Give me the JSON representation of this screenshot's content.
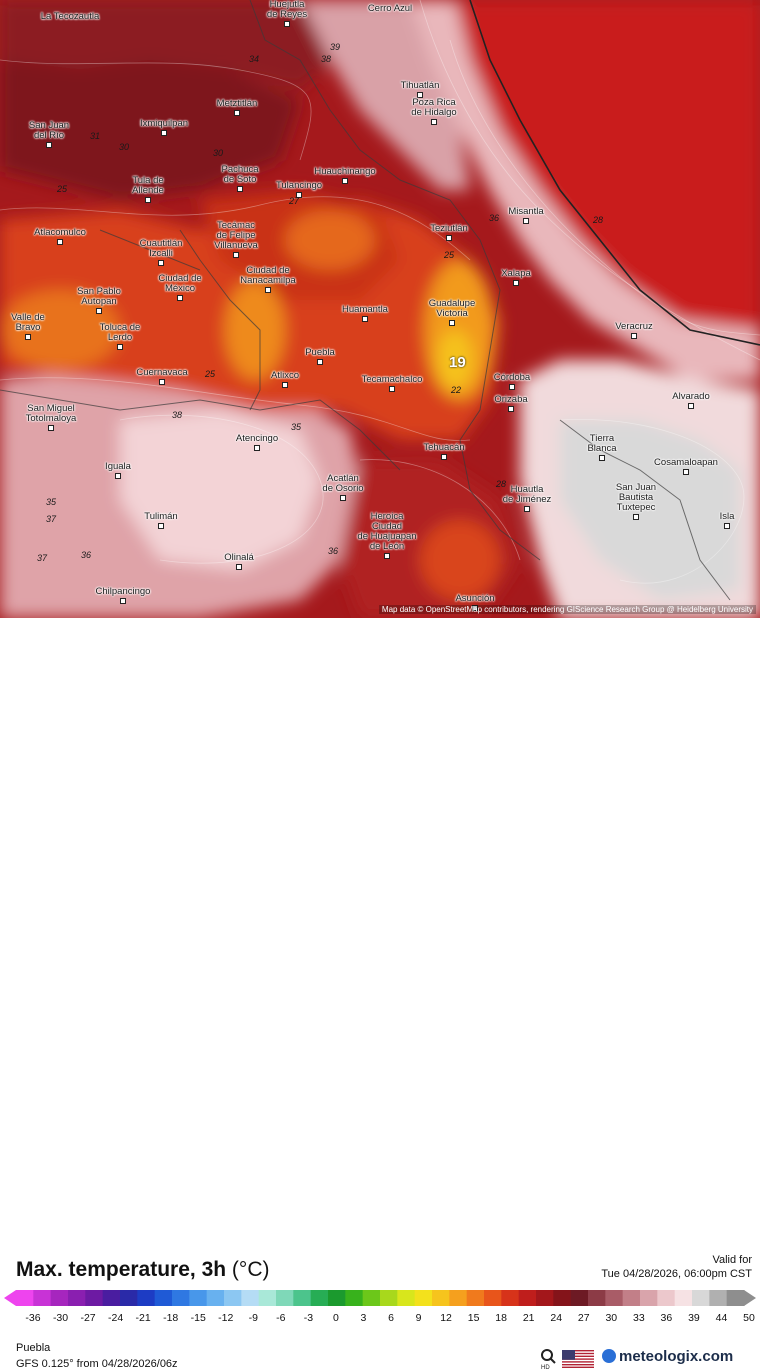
{
  "map": {
    "attribution": "Map data © OpenStreetMap contributors, rendering GIScience Research Group @ Heidelberg University",
    "cities": [
      {
        "name": "La Tecozautla",
        "pos": [
          70,
          17
        ],
        "marker": false
      },
      {
        "name": "Huejutla\nde Reyes",
        "pos": [
          287,
          10
        ],
        "marker": true
      },
      {
        "name": "Cerro Azul",
        "pos": [
          390,
          9
        ],
        "marker": false
      },
      {
        "name": "Tihuatlán",
        "pos": [
          420,
          86
        ],
        "marker": true
      },
      {
        "name": "Poza Rica\nde Hidalgo",
        "pos": [
          434,
          108
        ],
        "marker": true
      },
      {
        "name": "Metztitlán",
        "pos": [
          237,
          104
        ],
        "marker": true
      },
      {
        "name": "San Juan\ndel Río",
        "pos": [
          49,
          131
        ],
        "marker": true
      },
      {
        "name": "Ixmiquilpan",
        "pos": [
          164,
          124
        ],
        "marker": true
      },
      {
        "name": "Huauchinango",
        "pos": [
          345,
          172
        ],
        "marker": true
      },
      {
        "name": "Pachuca\nde Soto",
        "pos": [
          240,
          175
        ],
        "marker": true
      },
      {
        "name": "Tulancingo",
        "pos": [
          299,
          186
        ],
        "marker": true
      },
      {
        "name": "Tula de\nAllende",
        "pos": [
          148,
          186
        ],
        "marker": true
      },
      {
        "name": "Misantla",
        "pos": [
          526,
          212
        ],
        "marker": true
      },
      {
        "name": "Atlacomulco",
        "pos": [
          60,
          233
        ],
        "marker": true
      },
      {
        "name": "Tecámac\nde Felipe\nVillanueva",
        "pos": [
          236,
          236
        ],
        "marker": true
      },
      {
        "name": "Cuautitlán\nIzcalli",
        "pos": [
          161,
          249
        ],
        "marker": true
      },
      {
        "name": "Teziutlán",
        "pos": [
          449,
          229
        ],
        "marker": true
      },
      {
        "name": "Xalapa",
        "pos": [
          516,
          274
        ],
        "marker": true
      },
      {
        "name": "Ciudad de\nMéxico",
        "pos": [
          180,
          284
        ],
        "marker": true
      },
      {
        "name": "Ciudad de\nNanacamilpa",
        "pos": [
          268,
          276
        ],
        "marker": true
      },
      {
        "name": "San Pablo\nAutopan",
        "pos": [
          99,
          297
        ],
        "marker": true
      },
      {
        "name": "Guadalupe\nVictoria",
        "pos": [
          452,
          309
        ],
        "marker": true
      },
      {
        "name": "Huamantla",
        "pos": [
          365,
          310
        ],
        "marker": true
      },
      {
        "name": "Valle de\nBravo",
        "pos": [
          28,
          323
        ],
        "marker": true
      },
      {
        "name": "Toluca de\nLerdo",
        "pos": [
          120,
          333
        ],
        "marker": true
      },
      {
        "name": "Veracruz",
        "pos": [
          634,
          327
        ],
        "marker": true
      },
      {
        "name": "Puebla",
        "pos": [
          320,
          353
        ],
        "marker": true
      },
      {
        "name": "Cuernavaca",
        "pos": [
          162,
          373
        ],
        "marker": true
      },
      {
        "name": "Atlixco",
        "pos": [
          285,
          376
        ],
        "marker": true
      },
      {
        "name": "Tecamachalco",
        "pos": [
          392,
          380
        ],
        "marker": true
      },
      {
        "name": "Córdoba",
        "pos": [
          512,
          378
        ],
        "marker": true
      },
      {
        "name": "Orizaba",
        "pos": [
          511,
          400
        ],
        "marker": true
      },
      {
        "name": "Alvarado",
        "pos": [
          691,
          397
        ],
        "marker": true
      },
      {
        "name": "San Miguel\nTotolmaloya",
        "pos": [
          51,
          414
        ],
        "marker": true
      },
      {
        "name": "Atencingo",
        "pos": [
          257,
          439
        ],
        "marker": true
      },
      {
        "name": "Tierra\nBlanca",
        "pos": [
          602,
          444
        ],
        "marker": true
      },
      {
        "name": "Tehuacán",
        "pos": [
          444,
          448
        ],
        "marker": true
      },
      {
        "name": "Iguala",
        "pos": [
          118,
          467
        ],
        "marker": true
      },
      {
        "name": "Cosamaloapan",
        "pos": [
          686,
          463
        ],
        "marker": true
      },
      {
        "name": "Acatlán\nde Osorio",
        "pos": [
          343,
          484
        ],
        "marker": true
      },
      {
        "name": "Huautla\nde Jiménez",
        "pos": [
          527,
          495
        ],
        "marker": true
      },
      {
        "name": "San Juan\nBautista\nTuxtepec",
        "pos": [
          636,
          498
        ],
        "marker": true
      },
      {
        "name": "Tulimán",
        "pos": [
          161,
          517
        ],
        "marker": true
      },
      {
        "name": "Heroica\nCiudad\nde Huajuapan\nde León",
        "pos": [
          387,
          532
        ],
        "marker": true
      },
      {
        "name": "Isla",
        "pos": [
          727,
          517
        ],
        "marker": true
      },
      {
        "name": "Olinalá",
        "pos": [
          239,
          558
        ],
        "marker": true
      },
      {
        "name": "Chilpancingo",
        "pos": [
          123,
          592
        ],
        "marker": true
      },
      {
        "name": "Asunción",
        "pos": [
          475,
          599
        ],
        "marker": true
      }
    ],
    "contour_labels": [
      {
        "text": "34",
        "pos": [
          249,
          54
        ]
      },
      {
        "text": "38",
        "pos": [
          321,
          54
        ]
      },
      {
        "text": "39",
        "pos": [
          330,
          42
        ]
      },
      {
        "text": "31",
        "pos": [
          90,
          131
        ]
      },
      {
        "text": "30",
        "pos": [
          119,
          142
        ]
      },
      {
        "text": "30",
        "pos": [
          213,
          148
        ]
      },
      {
        "text": "27",
        "pos": [
          289,
          196
        ]
      },
      {
        "text": "25",
        "pos": [
          57,
          184
        ]
      },
      {
        "text": "36",
        "pos": [
          489,
          213
        ]
      },
      {
        "text": "28",
        "pos": [
          593,
          215
        ]
      },
      {
        "text": "25",
        "pos": [
          444,
          250
        ]
      },
      {
        "text": "22",
        "pos": [
          451,
          385
        ]
      },
      {
        "text": "25",
        "pos": [
          205,
          369
        ]
      },
      {
        "text": "38",
        "pos": [
          172,
          410
        ]
      },
      {
        "text": "35",
        "pos": [
          291,
          422
        ]
      },
      {
        "text": "28",
        "pos": [
          496,
          479
        ]
      },
      {
        "text": "35",
        "pos": [
          46,
          497
        ]
      },
      {
        "text": "37",
        "pos": [
          46,
          514
        ]
      },
      {
        "text": "37",
        "pos": [
          37,
          553
        ]
      },
      {
        "text": "36",
        "pos": [
          81,
          550
        ]
      },
      {
        "text": "36",
        "pos": [
          328,
          546
        ]
      }
    ],
    "highlight_value": "19"
  },
  "legend": {
    "title": "Max. temperature, 3h",
    "unit": "(°C)",
    "valid_label": "Valid for",
    "valid_time": "Tue 04/28/2026, 06:00pm CST",
    "ticks": [
      "-36",
      "-30",
      "-27",
      "-24",
      "-21",
      "-18",
      "-15",
      "-12",
      "-9",
      "-6",
      "-3",
      "0",
      "3",
      "6",
      "9",
      "12",
      "15",
      "18",
      "21",
      "24",
      "27",
      "30",
      "33",
      "36",
      "39",
      "44",
      "50"
    ],
    "colors": [
      "#ee44ee",
      "#c833d6",
      "#a626be",
      "#8a1fb0",
      "#6d1aa3",
      "#4a1da0",
      "#2a2aa8",
      "#1d3cc4",
      "#1f5ad6",
      "#2f78e2",
      "#4897ea",
      "#68b1ef",
      "#8cc7f2",
      "#b5dcf5",
      "#a9e8d8",
      "#7fd8b8",
      "#4cc48c",
      "#27ad55",
      "#1b9a2e",
      "#38b21c",
      "#6cc71a",
      "#a8d81c",
      "#d8e61c",
      "#f3e11c",
      "#f6c41d",
      "#f5a01e",
      "#f07a1d",
      "#e8551b",
      "#d7331a",
      "#bf1e1c",
      "#a3171b",
      "#84141a",
      "#6d1a24",
      "#8c3b46",
      "#a95c67",
      "#c27f88",
      "#d9a4ab",
      "#ecc8cc",
      "#f6e2e4",
      "#d8d8d8",
      "#b0b0b0",
      "#8e8e8e"
    ]
  },
  "footer": {
    "location": "Puebla",
    "model": "GFS 0.125° from  04/28/2026/06z",
    "brand": "meteologix.com",
    "hd_label": "HD"
  }
}
